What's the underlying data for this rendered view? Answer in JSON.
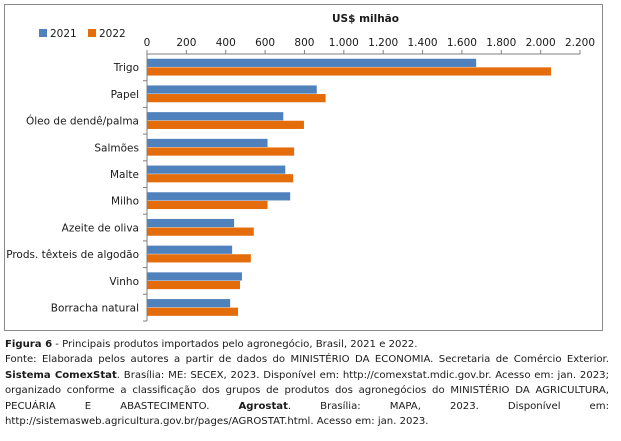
{
  "chart_data": {
    "type": "bar",
    "orientation": "horizontal",
    "xlabel": "US$ milhão",
    "xlim": [
      0,
      2200
    ],
    "xticks": [
      0,
      200,
      400,
      600,
      800,
      1000,
      1200,
      1400,
      1600,
      1800,
      2000,
      2200
    ],
    "xtick_labels": [
      "0",
      "200",
      "400",
      "600",
      "800",
      "1.000",
      "1.200",
      "1.400",
      "1.600",
      "1.800",
      "2.000",
      "2.200"
    ],
    "axis_position": "top",
    "legend_position": "top-left",
    "grid": false,
    "categories": [
      "Trigo",
      "Papel",
      "Óleo de dendê/palma",
      "Salmões",
      "Malte",
      "Milho",
      "Azeite de oliva",
      "Prods. têxteis de algodão",
      "Vinho",
      "Borracha natural"
    ],
    "series": [
      {
        "name": "2021",
        "color": "#4f81bd",
        "values": [
          1670,
          860,
          690,
          610,
          700,
          725,
          440,
          430,
          480,
          420
        ]
      },
      {
        "name": "2022",
        "color": "#e46c0a",
        "values": [
          2050,
          905,
          795,
          745,
          740,
          610,
          540,
          525,
          470,
          460
        ]
      }
    ]
  },
  "caption": {
    "figure_label": "Figura 6",
    "figure_text": " - Principais produtos importados pelo agronegócio, Brasil, 2021 e 2022.",
    "source_part1": "Fonte: Elaborada pelos autores a partir de dados do MINISTÉRIO DA ECONOMIA. Secretaria de Comércio Exterior. ",
    "source_bold1": "Sistema ComexStat",
    "source_part2": ". Brasília: ME: SECEX, 2023. Disponível em: http://comexstat.mdic.gov.br. Acesso em: jan. 2023; organizado conforme a classificação dos grupos de produtos dos agronegócios do MINISTÉRIO DA AGRICULTURA, PECUÁRIA E ABASTECIMENTO. ",
    "source_bold2": "Agrostat",
    "source_part3": ". Brasília: MAPA, 2023. Disponível em: http://sistemasweb.agricultura.gov.br/pages/AGROSTAT.html. Acesso em: jan. 2023."
  }
}
